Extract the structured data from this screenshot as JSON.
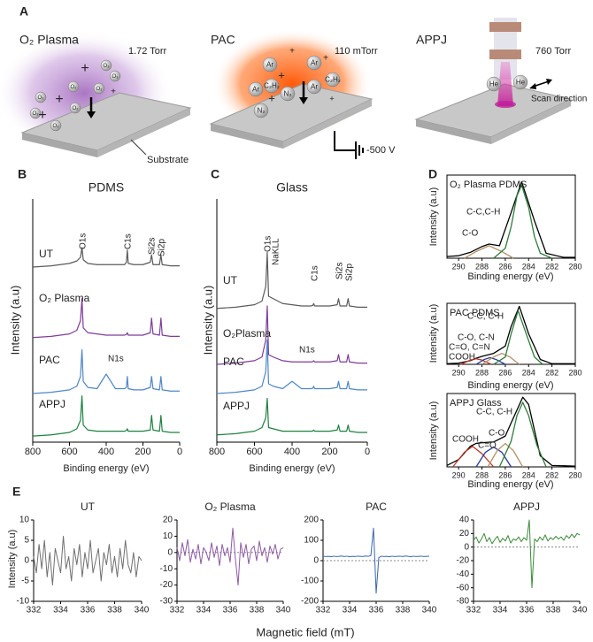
{
  "panel_labels": [
    "A",
    "B",
    "C",
    "D",
    "E"
  ],
  "schematic": {
    "o2_plasma": {
      "title": "O₂ Plasma",
      "pressure": "1.72 Torr",
      "substrate": "Substrate",
      "species": [
        "O₃",
        "O₂",
        "O₂",
        "O₃",
        "O₂",
        "O₃",
        "O₂",
        "O₃"
      ],
      "ion": "+"
    },
    "pac": {
      "title": "PAC",
      "pressure": "110 mTorr",
      "species": [
        "Ar",
        "Ar",
        "C₂H₂",
        "Ar",
        "N₂",
        "Ar",
        "C₂H₂",
        "N₂"
      ],
      "ion": "+",
      "bias": "-500 V"
    },
    "appj": {
      "title": "APPJ",
      "pressure": "760 Torr",
      "species": [
        "He",
        "He"
      ],
      "scan": "Scan direction"
    }
  },
  "chart_data": [
    {
      "type": "line",
      "title": "PDMS",
      "xlabel": "Binding energy (eV)",
      "ylabel": "Intensity (a.u)",
      "x": [
        800,
        700,
        600,
        560,
        540,
        532,
        525,
        500,
        450,
        400,
        350,
        300,
        290,
        285,
        280,
        250,
        200,
        160,
        153,
        145,
        110,
        102,
        95,
        50,
        0
      ],
      "xlim": [
        800,
        0
      ],
      "xticks": [
        800,
        600,
        400,
        200,
        0
      ],
      "ylim": [
        0,
        100
      ],
      "series": [
        {
          "name": "UT",
          "color": "#5a5a5a",
          "values": [
            72,
            72.5,
            73.5,
            74.5,
            76,
            80,
            75,
            73.5,
            73,
            73,
            73,
            73,
            74,
            79,
            73.5,
            73,
            73,
            74,
            77,
            73,
            73,
            77,
            73,
            72.5,
            72.5
          ]
        },
        {
          "name": "O₂ Plasma",
          "color": "#7d3c98",
          "values": [
            43,
            43.5,
            44.5,
            46,
            50,
            59,
            47,
            45,
            44.5,
            44,
            44,
            44,
            44.3,
            45,
            44,
            44,
            44,
            45,
            51,
            44.5,
            44,
            51,
            44,
            43.5,
            43.5
          ]
        },
        {
          "name": "PAC",
          "color": "#4f86c6",
          "values": [
            20,
            20.5,
            21.5,
            23,
            27,
            38,
            25,
            22.5,
            22,
            28,
            22,
            22,
            22.5,
            27,
            22,
            21.5,
            21.5,
            22.5,
            27,
            22,
            21.5,
            27,
            21.5,
            21,
            21
          ]
        },
        {
          "name": "APPJ",
          "color": "#1e8040",
          "values": [
            2.5,
            3,
            4,
            5.5,
            9,
            19,
            7,
            5,
            4.5,
            4.5,
            4.5,
            4.5,
            4.8,
            5.5,
            4.5,
            4.5,
            4.5,
            5,
            11,
            5,
            4.5,
            11,
            4.5,
            4,
            4
          ]
        }
      ],
      "annotations": [
        "O1s",
        "C1s",
        "Si2s",
        "Si2p",
        "N1s"
      ]
    },
    {
      "type": "line",
      "title": "Glass",
      "xlabel": "Binding energy (eV)",
      "ylabel": "Intensity (a.u)",
      "x": [
        800,
        700,
        600,
        560,
        540,
        532,
        525,
        500,
        450,
        400,
        350,
        300,
        290,
        285,
        280,
        250,
        200,
        160,
        153,
        145,
        110,
        102,
        95,
        50,
        0
      ],
      "xlim": [
        800,
        0
      ],
      "xticks": [
        800,
        600,
        400,
        200,
        0
      ],
      "ylim": [
        0,
        100
      ],
      "series": [
        {
          "name": "UT",
          "color": "#5a5a5a",
          "values": [
            55,
            55.5,
            56.5,
            58,
            64,
            78,
            60,
            59,
            57,
            56.5,
            56,
            56,
            56.2,
            57,
            56,
            56,
            56,
            56.5,
            59,
            56,
            56,
            59,
            56,
            55.5,
            55.5
          ]
        },
        {
          "name": "O₂Plasma",
          "color": "#7d3c98",
          "values": [
            32,
            32.5,
            33.5,
            35,
            42,
            56,
            36,
            35,
            33.5,
            33,
            33,
            33,
            33.1,
            33.5,
            33,
            33,
            33,
            33.5,
            36,
            33,
            33,
            36,
            33,
            32.5,
            32.5
          ]
        },
        {
          "name": "PAC",
          "color": "#4f86c6",
          "values": [
            20,
            20.5,
            21.5,
            23,
            29,
            42,
            24,
            23,
            22,
            25,
            22,
            22,
            22.2,
            23,
            22,
            22,
            22,
            22.5,
            25,
            22,
            22,
            25,
            22,
            21.5,
            21.5
          ]
        },
        {
          "name": "APPJ",
          "color": "#1e8040",
          "values": [
            3,
            3.5,
            4.5,
            6,
            10,
            18,
            6,
            5.5,
            4.5,
            4.5,
            4.5,
            4.5,
            4.6,
            5,
            4.5,
            4.5,
            4.5,
            5,
            7,
            4.5,
            4.5,
            7,
            4.5,
            4,
            4
          ]
        }
      ],
      "annotations": [
        "O1s",
        "NaKLL",
        "C1s",
        "Si2s",
        "Si2p",
        "N1s"
      ]
    },
    {
      "type": "line",
      "title": "O₂ Plasma PDMS",
      "xlabel": "Binding energy (eV)",
      "ylabel": "Intensity (a.u)",
      "xlim": [
        291,
        280
      ],
      "xticks": [
        290,
        288,
        286,
        284,
        282,
        280
      ],
      "ylim": [
        0,
        100
      ],
      "series": [
        {
          "color": "#000000",
          "x": [
            291,
            290,
            289,
            288,
            287.4,
            286.5,
            285.5,
            284.6,
            283.5,
            282.5,
            281,
            280
          ],
          "values": [
            2,
            3,
            7,
            14,
            17,
            15,
            55,
            92,
            45,
            6,
            1,
            1
          ]
        },
        {
          "name": "C-O",
          "color": "#b5936a",
          "x": [
            289.5,
            288.5,
            287.4,
            286.3,
            285.3
          ],
          "values": [
            0,
            8,
            15,
            8,
            0
          ]
        },
        {
          "name": "C-C,C-H",
          "color": "#2e7d3a",
          "x": [
            287,
            286,
            285.5,
            285,
            284.6,
            284,
            283.5,
            283,
            282
          ],
          "values": [
            0,
            12,
            38,
            75,
            88,
            61,
            26,
            6,
            0
          ]
        }
      ]
    },
    {
      "type": "line",
      "title": "PAC PDMS",
      "xlabel": "Binding energy (eV)",
      "ylabel": "Intensity (a.u)",
      "xlim": [
        291,
        280
      ],
      "xticks": [
        290,
        288,
        286,
        284,
        282,
        280
      ],
      "ylim": [
        0,
        100
      ],
      "series": [
        {
          "color": "#000000",
          "x": [
            291,
            290,
            289,
            288.5,
            288,
            287,
            286,
            285.5,
            284.8,
            284,
            283,
            282,
            280
          ],
          "values": [
            1,
            2,
            6,
            10,
            13,
            18,
            30,
            62,
            95,
            50,
            8,
            1,
            1
          ]
        },
        {
          "name": "COOH",
          "color": "#c0392b",
          "x": [
            289.8,
            289,
            288.5,
            288,
            287.2
          ],
          "values": [
            0,
            7,
            9,
            7,
            0
          ]
        },
        {
          "name": "C=O, C=N",
          "color": "#2b3b9a",
          "x": [
            288.5,
            287.8,
            287.3,
            286.8,
            286
          ],
          "values": [
            0,
            8,
            11,
            8,
            0
          ]
        },
        {
          "name": "C-O, C-N",
          "color": "#b5936a",
          "x": [
            288,
            287,
            286.3,
            285.6,
            284.8
          ],
          "values": [
            0,
            12,
            18,
            12,
            0
          ]
        },
        {
          "name": "C-C, C-H",
          "color": "#2e7d3a",
          "x": [
            287,
            286,
            285.5,
            284.9,
            284.3,
            283.5,
            282.8
          ],
          "values": [
            0,
            12,
            50,
            88,
            55,
            12,
            0
          ]
        }
      ]
    },
    {
      "type": "line",
      "title": "APPJ Glass",
      "xlabel": "Binding energy (eV)",
      "ylabel": "Intensity (a.u)",
      "xlim": [
        291,
        280
      ],
      "xticks": [
        290,
        288,
        286,
        284,
        282,
        280
      ],
      "ylim": [
        0,
        100
      ],
      "series": [
        {
          "color": "#000000",
          "x": [
            291,
            290,
            289,
            288.5,
            288,
            287,
            286,
            285.5,
            284.5,
            284,
            283.5,
            283,
            282,
            280
          ],
          "values": [
            2,
            10,
            28,
            32,
            33,
            34,
            42,
            60,
            95,
            85,
            50,
            15,
            2,
            1
          ]
        },
        {
          "name": "COOH",
          "color": "#c0392b",
          "x": [
            290.5,
            289.5,
            288.8,
            288,
            287
          ],
          "values": [
            0,
            20,
            28,
            18,
            0
          ]
        },
        {
          "name": "C=O",
          "color": "#2b3b9a",
          "x": [
            288.5,
            287.7,
            287,
            286.3,
            285.5
          ],
          "values": [
            0,
            20,
            27,
            20,
            0
          ]
        },
        {
          "name": "C-O",
          "color": "#b5936a",
          "x": [
            287.5,
            286.7,
            286,
            285.3,
            284.5
          ],
          "values": [
            0,
            22,
            32,
            22,
            0
          ]
        },
        {
          "name": "C-C, C-H",
          "color": "#2e7d3a",
          "x": [
            286.5,
            285.5,
            285,
            284.5,
            284,
            283.3,
            282.5
          ],
          "values": [
            0,
            35,
            70,
            88,
            70,
            30,
            0
          ]
        }
      ]
    },
    {
      "type": "line",
      "title": "UT",
      "xlabel": "Magnetic field (mT)",
      "ylabel": "Intensity (a.u)",
      "x": [
        332,
        332.2,
        332.4,
        332.6,
        332.8,
        333,
        333.2,
        333.4,
        333.6,
        333.8,
        334,
        334.2,
        334.4,
        334.6,
        334.8,
        335,
        335.2,
        335.4,
        335.6,
        335.8,
        336,
        336.2,
        336.4,
        336.6,
        336.8,
        337,
        337.2,
        337.4,
        337.6,
        337.8,
        338,
        338.2,
        338.4,
        338.6,
        338.8,
        339,
        339.2,
        339.4,
        339.6,
        339.8,
        340
      ],
      "xlim": [
        332,
        340
      ],
      "xticks": [
        332,
        334,
        336,
        338,
        340
      ],
      "ylim": [
        -10,
        10
      ],
      "yticks": [
        10,
        5,
        0,
        -5,
        -10
      ],
      "zero_line": false,
      "series": [
        {
          "color": "#707070",
          "values": [
            1,
            -3,
            4,
            -2,
            5,
            -4,
            2,
            -6,
            3,
            0,
            -3,
            6,
            -2,
            1,
            -5,
            3,
            -1,
            4,
            -4,
            2,
            -2,
            5,
            -3,
            0,
            3,
            -5,
            2,
            -1,
            4,
            -3,
            1,
            -4,
            3,
            -2,
            5,
            -1,
            -3,
            2,
            -4,
            1,
            0
          ]
        }
      ]
    },
    {
      "type": "line",
      "title": "O₂ Plasma",
      "x": [
        332,
        332.2,
        332.4,
        332.6,
        332.8,
        333,
        333.2,
        333.4,
        333.6,
        333.8,
        334,
        334.2,
        334.4,
        334.6,
        334.8,
        335,
        335.2,
        335.4,
        335.6,
        335.8,
        336,
        336.2,
        336.4,
        336.6,
        336.8,
        337,
        337.2,
        337.4,
        337.6,
        337.8,
        338,
        338.2,
        338.4,
        338.6,
        338.8,
        339,
        339.2,
        339.4,
        339.6,
        339.8,
        340
      ],
      "xlim": [
        332,
        340
      ],
      "xticks": [
        332,
        334,
        336,
        338,
        340
      ],
      "ylim": [
        -30,
        20
      ],
      "yticks": [
        20,
        10,
        0,
        -10,
        -20,
        -30
      ],
      "zero_line": true,
      "series": [
        {
          "color": "#8e5aa3",
          "values": [
            3,
            -5,
            6,
            -2,
            8,
            -6,
            2,
            -4,
            5,
            -7,
            3,
            0,
            -5,
            6,
            -3,
            4,
            -8,
            5,
            -2,
            3,
            -6,
            15,
            -4,
            -20,
            6,
            -3,
            5,
            -7,
            2,
            4,
            -5,
            7,
            -2,
            3,
            -6,
            4,
            -1,
            5,
            -4,
            2,
            3
          ]
        }
      ]
    },
    {
      "type": "line",
      "title": "PAC",
      "x": [
        332,
        332.2,
        332.4,
        332.6,
        332.8,
        333,
        333.2,
        333.4,
        333.6,
        333.8,
        334,
        334.2,
        334.4,
        334.6,
        334.8,
        335,
        335.2,
        335.4,
        335.6,
        335.8,
        336,
        336.2,
        336.4,
        336.6,
        336.8,
        337,
        337.2,
        337.4,
        337.6,
        337.8,
        338,
        338.2,
        338.4,
        338.6,
        338.8,
        339,
        339.2,
        339.4,
        339.6,
        339.8,
        340
      ],
      "xlim": [
        332,
        340
      ],
      "xticks": [
        332,
        334,
        336,
        338,
        340
      ],
      "ylim": [
        -200,
        200
      ],
      "yticks": [
        200,
        100,
        0,
        -100,
        -200
      ],
      "zero_line": true,
      "series": [
        {
          "color": "#3a66b0",
          "values": [
            22,
            20,
            21,
            19,
            22,
            20,
            21,
            23,
            20,
            22,
            19,
            21,
            20,
            22,
            21,
            20,
            23,
            21,
            25,
            160,
            -160,
            15,
            22,
            20,
            21,
            19,
            22,
            20,
            21,
            22,
            20,
            23,
            21,
            19,
            22,
            20,
            21,
            22,
            20,
            21,
            22
          ]
        }
      ]
    },
    {
      "type": "line",
      "title": "APPJ",
      "x": [
        332,
        332.2,
        332.4,
        332.6,
        332.8,
        333,
        333.2,
        333.4,
        333.6,
        333.8,
        334,
        334.2,
        334.4,
        334.6,
        334.8,
        335,
        335.2,
        335.4,
        335.6,
        335.8,
        336,
        336.2,
        336.4,
        336.6,
        336.8,
        337,
        337.2,
        337.4,
        337.6,
        337.8,
        338,
        338.2,
        338.4,
        338.6,
        338.8,
        339,
        339.2,
        339.4,
        339.6,
        339.8,
        340
      ],
      "xlim": [
        332,
        340
      ],
      "xticks": [
        332,
        334,
        336,
        338,
        340
      ],
      "ylim": [
        -80,
        40
      ],
      "yticks": [
        40,
        20,
        0,
        -20,
        -40,
        -60,
        -80
      ],
      "zero_line": true,
      "series": [
        {
          "color": "#3d8a3a",
          "values": [
            10,
            15,
            6,
            12,
            20,
            8,
            14,
            5,
            11,
            16,
            7,
            13,
            9,
            17,
            6,
            12,
            10,
            15,
            8,
            14,
            10,
            40,
            -60,
            12,
            8,
            15,
            10,
            18,
            9,
            14,
            11,
            16,
            12,
            15,
            10,
            17,
            13,
            19,
            14,
            20,
            18
          ]
        }
      ]
    }
  ]
}
